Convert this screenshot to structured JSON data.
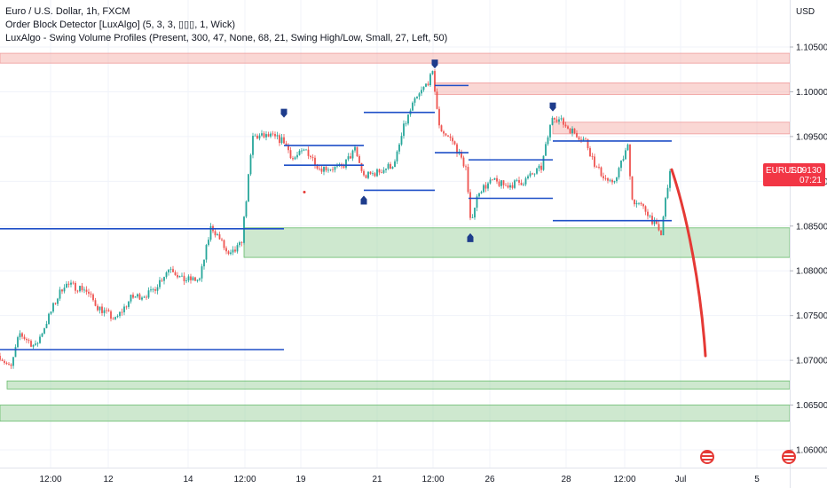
{
  "legend": {
    "symbol_line": "Euro / U.S. Dollar, 1h, FXCM",
    "indicator_1": "Order Block Detector [LuxAlgo] (5, 3, 3, ▯▯▯, 1, Wick)",
    "indicator_2": "LuxAlgo - Swing Volume Profiles (Present, 300, 47, None, 68, 21, Swing High/Low, Small, 27, Left, 50)"
  },
  "price_axis": {
    "unit": "USD"
  },
  "price_tag": {
    "symbol": "EURUSD",
    "value": "1.09130",
    "countdown": "07:21"
  },
  "colors": {
    "up": "#26a69a",
    "down": "#ef5350",
    "level_line": "#1e4fc7",
    "demand_zone": "#a5d6a7",
    "supply_zone": "#f5b7b1",
    "projection": "#e53935"
  },
  "icons": [
    "swing-high-marker-icon",
    "swing-low-marker-icon",
    "us-flag-icon"
  ],
  "chart_data": {
    "type": "candlestick",
    "y_ticks": [
      "1.06000",
      "1.06500",
      "1.07000",
      "1.07500",
      "1.08000",
      "1.08500",
      "1.09000",
      "1.09500",
      "1.10000",
      "1.10500"
    ],
    "x_ticks": [
      "12:00",
      "12",
      "14",
      "12:00",
      "19",
      "21",
      "12:00",
      "26",
      "28",
      "12:00",
      "Jul",
      "5"
    ],
    "ylim": [
      1.0585,
      1.1117
    ],
    "x_unit": "bars",
    "xlim": [
      0,
      890
    ],
    "price_path": [
      [
        0,
        1.0705
      ],
      [
        12,
        1.069
      ],
      [
        22,
        1.073
      ],
      [
        40,
        1.0715
      ],
      [
        60,
        1.076
      ],
      [
        72,
        1.0785
      ],
      [
        95,
        1.078
      ],
      [
        110,
        1.076
      ],
      [
        130,
        1.0745
      ],
      [
        148,
        1.077
      ],
      [
        170,
        1.0775
      ],
      [
        192,
        1.0805
      ],
      [
        205,
        1.079
      ],
      [
        225,
        1.079
      ],
      [
        238,
        1.085
      ],
      [
        248,
        1.0835
      ],
      [
        258,
        1.0815
      ],
      [
        272,
        1.083
      ],
      [
        285,
        1.095
      ],
      [
        305,
        1.095
      ],
      [
        320,
        1.0945
      ],
      [
        330,
        1.0925
      ],
      [
        345,
        1.0935
      ],
      [
        360,
        1.0915
      ],
      [
        385,
        1.0915
      ],
      [
        400,
        1.0935
      ],
      [
        410,
        1.0905
      ],
      [
        425,
        1.091
      ],
      [
        445,
        1.092
      ],
      [
        455,
        1.096
      ],
      [
        465,
        1.0985
      ],
      [
        488,
        1.102
      ],
      [
        495,
        1.096
      ],
      [
        510,
        1.0945
      ],
      [
        525,
        1.0915
      ],
      [
        530,
        1.0855
      ],
      [
        540,
        1.089
      ],
      [
        555,
        1.09
      ],
      [
        570,
        1.0895
      ],
      [
        590,
        1.09
      ],
      [
        610,
        1.0915
      ],
      [
        623,
        1.0975
      ],
      [
        640,
        1.096
      ],
      [
        660,
        1.0945
      ],
      [
        672,
        1.0915
      ],
      [
        690,
        1.0895
      ],
      [
        708,
        1.094
      ],
      [
        712,
        1.088
      ],
      [
        730,
        1.0865
      ],
      [
        745,
        1.084
      ],
      [
        752,
        1.0895
      ],
      [
        757,
        1.0915
      ]
    ],
    "projection": [
      [
        757,
        1.0913
      ],
      [
        775,
        1.086
      ],
      [
        790,
        1.078
      ],
      [
        795,
        1.0705
      ]
    ],
    "zones": [
      {
        "kind": "supply",
        "x0": 0,
        "x1": 890,
        "y0": 1.1032,
        "y1": 1.1043
      },
      {
        "kind": "supply",
        "x0": 490,
        "x1": 890,
        "y0": 1.0997,
        "y1": 1.101
      },
      {
        "kind": "supply",
        "x0": 623,
        "x1": 890,
        "y0": 1.0953,
        "y1": 1.0966
      },
      {
        "kind": "demand",
        "x0": 275,
        "x1": 890,
        "y0": 1.0815,
        "y1": 1.0848
      },
      {
        "kind": "demand",
        "x0": 8,
        "x1": 890,
        "y0": 1.0668,
        "y1": 1.0677
      },
      {
        "kind": "demand",
        "x0": 0,
        "x1": 890,
        "y0": 1.0632,
        "y1": 1.065
      }
    ],
    "level_lines": [
      {
        "x0": 0,
        "x1": 320,
        "y": 1.0847
      },
      {
        "x0": 0,
        "x1": 320,
        "y": 1.0712
      },
      {
        "x0": 320,
        "x1": 410,
        "y": 1.094
      },
      {
        "x0": 320,
        "x1": 410,
        "y": 1.0918
      },
      {
        "x0": 410,
        "x1": 490,
        "y": 1.0977
      },
      {
        "x0": 410,
        "x1": 490,
        "y": 1.089
      },
      {
        "x0": 490,
        "x1": 528,
        "y": 1.0932
      },
      {
        "x0": 490,
        "x1": 528,
        "y": 1.1007
      },
      {
        "x0": 528,
        "x1": 623,
        "y": 1.0924
      },
      {
        "x0": 528,
        "x1": 623,
        "y": 1.0881
      },
      {
        "x0": 623,
        "x1": 757,
        "y": 1.0945
      },
      {
        "x0": 623,
        "x1": 757,
        "y": 1.0856
      }
    ],
    "swing_markers": [
      {
        "x": 320,
        "y": 1.0975,
        "dir": "high"
      },
      {
        "x": 410,
        "y": 1.088,
        "dir": "low"
      },
      {
        "x": 490,
        "y": 1.103,
        "dir": "high"
      },
      {
        "x": 530,
        "y": 1.0838,
        "dir": "low"
      },
      {
        "x": 623,
        "y": 1.0982,
        "dir": "high"
      }
    ]
  }
}
